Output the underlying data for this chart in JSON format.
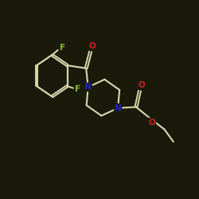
{
  "background_color": "#1a1a0a",
  "bond_color": "#d8d8b0",
  "atom_colors": {
    "F": "#88bb33",
    "O": "#cc2222",
    "N": "#2222cc",
    "C": "#d8d8b0"
  },
  "figsize": [
    2.5,
    2.5
  ],
  "dpi": 100
}
